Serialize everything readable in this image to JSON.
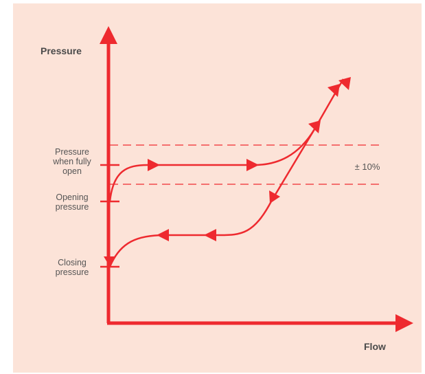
{
  "colors": {
    "background": "#fce3d8",
    "line": "#ee2a2f",
    "text": "#555555",
    "title": "#4a4a4a"
  },
  "axes": {
    "y_title": "Pressure",
    "x_title": "Flow"
  },
  "levels": {
    "fully_open": "Pressure when fully open",
    "fully_open_lines": [
      "Pressure",
      "when fully",
      "open"
    ],
    "opening_lines": [
      "Opening",
      "pressure"
    ],
    "closing_lines": [
      "Closing",
      "pressure"
    ]
  },
  "tolerance_band": {
    "label": "± 10%"
  }
}
